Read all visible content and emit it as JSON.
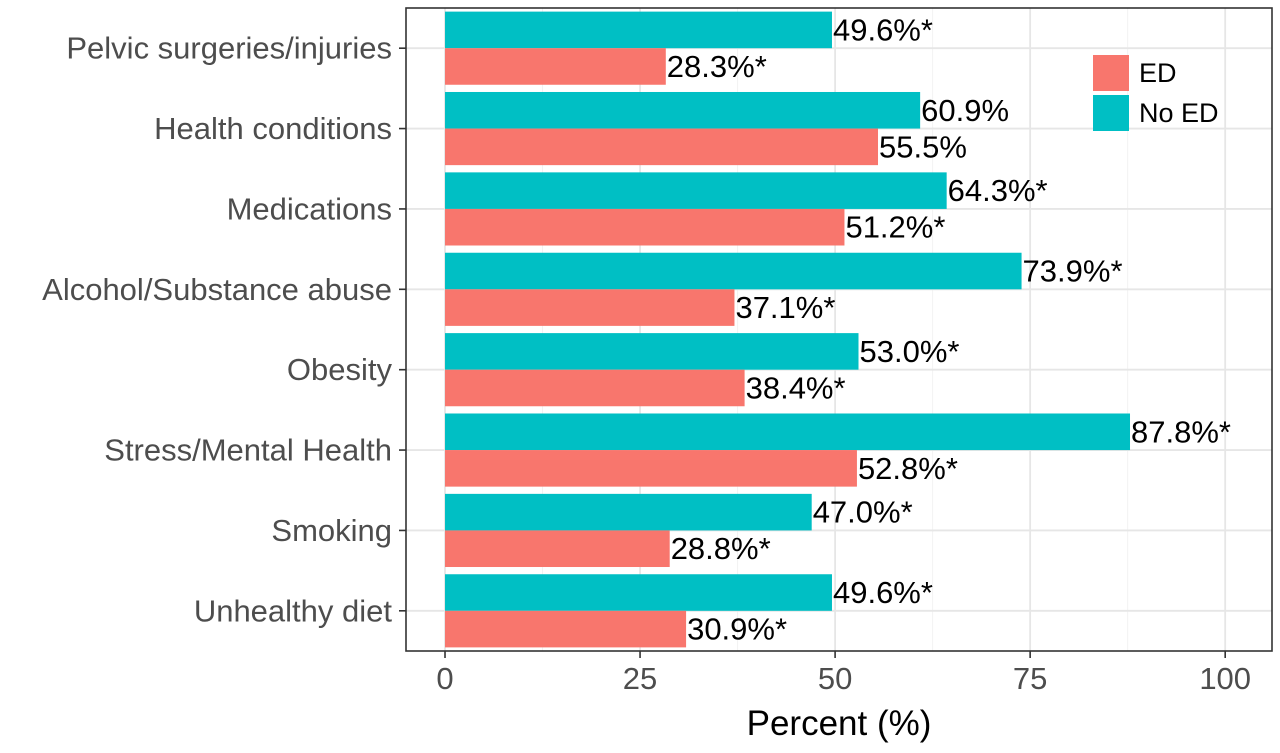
{
  "chart_data": {
    "type": "bar",
    "orientation": "horizontal",
    "categories": [
      "Pelvic surgeries/injuries",
      "Health conditions",
      "Medications",
      "Alcohol/Substance abuse",
      "Obesity",
      "Stress/Mental Health",
      "Smoking",
      "Unhealthy diet"
    ],
    "series": [
      {
        "name": "ED",
        "color": "#F8766D",
        "values": [
          28.3,
          55.5,
          51.2,
          37.1,
          38.4,
          52.8,
          28.8,
          30.9
        ],
        "labels": [
          "28.3%*",
          "55.5%",
          "51.2%*",
          "37.1%*",
          "38.4%*",
          "52.8%*",
          "28.8%*",
          "30.9%*"
        ]
      },
      {
        "name": "No ED",
        "color": "#00BFC4",
        "values": [
          49.6,
          60.9,
          64.3,
          73.9,
          53.0,
          87.8,
          47.0,
          49.6
        ],
        "labels": [
          "49.6%*",
          "60.9%",
          "64.3%*",
          "73.9%*",
          "53.0%*",
          "87.8%*",
          "47.0%*",
          "49.6%*"
        ]
      }
    ],
    "xlabel": "Percent (%)",
    "ylabel": "",
    "xlim": [
      -5,
      106
    ],
    "xticks": [
      0,
      25,
      50,
      75,
      100
    ],
    "xtick_labels": [
      "0",
      "25",
      "50",
      "75",
      "100"
    ],
    "grid": true,
    "legend": {
      "position": "top-right",
      "entries": [
        "ED",
        "No ED"
      ]
    }
  }
}
